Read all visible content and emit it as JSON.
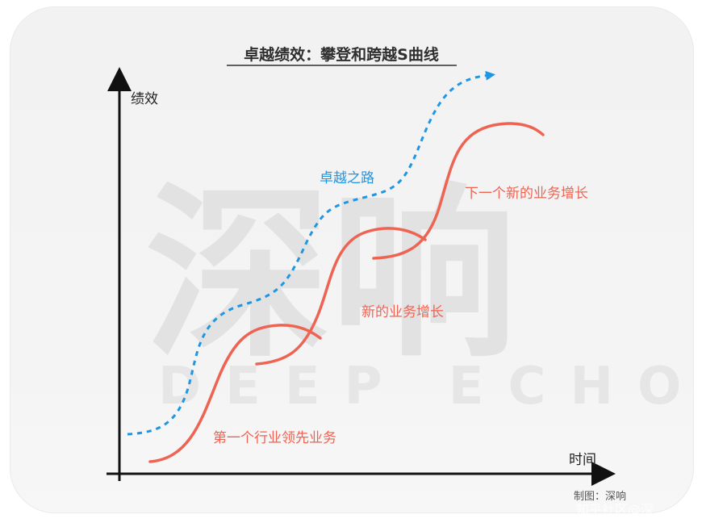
{
  "title": "卓越绩效：攀登和跨越S曲线",
  "axes": {
    "y_label": "绩效",
    "x_label": "时间"
  },
  "curves": {
    "dashed_label": "卓越之路",
    "curve1_label": "第一个行业领先业务",
    "curve2_label": "新的业务增长",
    "curve3_label": "下一个新的业务增长"
  },
  "credit": "制图：深响",
  "watermark": {
    "big": "深响",
    "small": "DEEP ECHO",
    "corner": "知乎社区@深"
  },
  "colors": {
    "curve_red": "#ee6352",
    "path_blue": "#1e96e6",
    "axis": "#111111",
    "background_card": "#f3f3f3"
  }
}
